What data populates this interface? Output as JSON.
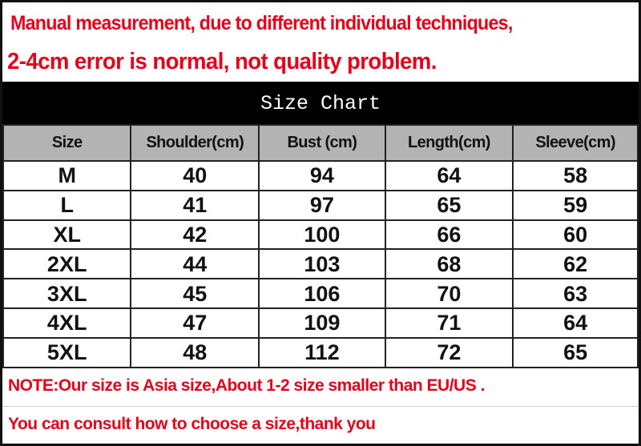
{
  "header": {
    "line1": "Manual measurement, due to different individual techniques,",
    "line2": "2-4cm error is normal, not quality problem."
  },
  "title": "Size Chart",
  "table": {
    "columns": [
      "Size",
      "Shoulder(cm)",
      "Bust  (cm)",
      "Length(cm)",
      "Sleeve(cm)"
    ],
    "rows": [
      [
        "M",
        "40",
        "94",
        "64",
        "58"
      ],
      [
        "L",
        "41",
        "97",
        "65",
        "59"
      ],
      [
        "XL",
        "42",
        "100",
        "66",
        "60"
      ],
      [
        "2XL",
        "44",
        "103",
        "68",
        "62"
      ],
      [
        "3XL",
        "45",
        "106",
        "70",
        "63"
      ],
      [
        "4XL",
        "47",
        "109",
        "71",
        "64"
      ],
      [
        "5XL",
        "48",
        "112",
        "72",
        "65"
      ]
    ]
  },
  "notes": {
    "note1": "NOTE:Our size is Asia size,About 1-2 size smaller than EU/US .",
    "note2": "You can consult how to choose a size,thank you"
  },
  "colors": {
    "note_text": "#e3001b",
    "title_bg": "#000000",
    "header_bg": "#b3b3b3"
  }
}
